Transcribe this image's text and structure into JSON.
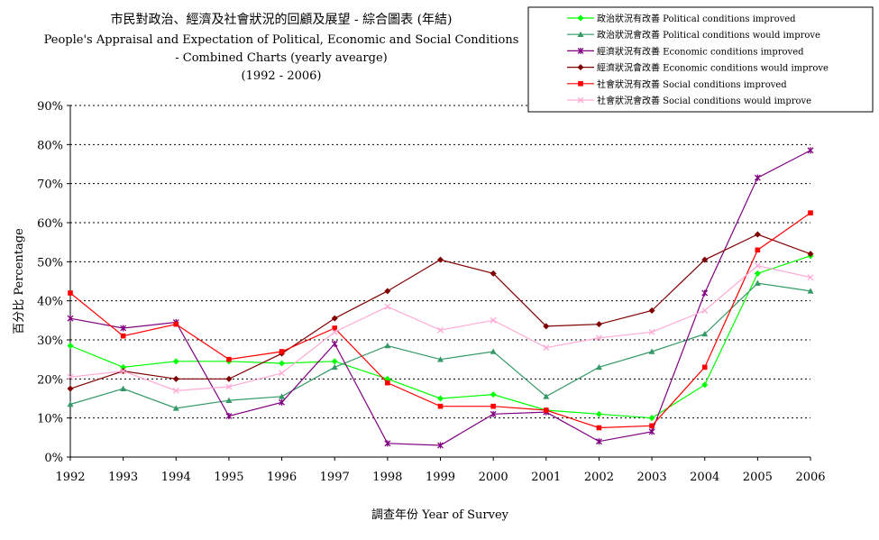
{
  "chart_data": {
    "type": "line",
    "title_lines": [
      "市民對政治、經濟及社會狀況的回顧及展望 - 綜合圖表 (年結)",
      "People's Appraisal and Expectation of Political, Economic and Social Conditions",
      "- Combined Charts  (yearly avearge)",
      "(1992 - 2006)"
    ],
    "xlabel": "調查年份 Year of Survey",
    "ylabel": "百分比 Percentage",
    "x": [
      "1992",
      "1993",
      "1994",
      "1995",
      "1996",
      "1997",
      "1998",
      "1999",
      "2000",
      "2001",
      "2002",
      "2003",
      "2004",
      "2005",
      "2006"
    ],
    "y_ticks": [
      "0%",
      "10%",
      "20%",
      "30%",
      "40%",
      "50%",
      "60%",
      "70%",
      "80%",
      "90%"
    ],
    "ylim": [
      0,
      90
    ],
    "grid": "horizontal dotted",
    "legend_position": "top-right",
    "series": [
      {
        "name": "政治狀況有改善 Political conditions improved",
        "color": "#00ff00",
        "marker": "diamond",
        "values": [
          28.5,
          23.0,
          24.5,
          24.5,
          24.0,
          24.5,
          20.0,
          15.0,
          16.0,
          12.0,
          11.0,
          10.0,
          18.5,
          47.0,
          51.5
        ]
      },
      {
        "name": "政治狀況會改善 Political conditions would improve",
        "color": "#339966",
        "marker": "triangle",
        "values": [
          13.5,
          17.5,
          12.5,
          14.5,
          15.5,
          23.0,
          28.5,
          25.0,
          27.0,
          15.5,
          23.0,
          27.0,
          31.5,
          44.5,
          42.5
        ]
      },
      {
        "name": "經濟狀況有改善 Economic conditions improved",
        "color": "#800080",
        "marker": "star",
        "values": [
          35.5,
          33.0,
          34.5,
          10.5,
          14.0,
          29.0,
          3.5,
          3.0,
          11.0,
          11.5,
          4.0,
          6.5,
          42.0,
          71.5,
          78.5
        ]
      },
      {
        "name": "經濟狀況會改善 Economic conditions would improve",
        "color": "#800000",
        "marker": "diamond",
        "values": [
          17.5,
          22.0,
          20.0,
          20.0,
          26.5,
          35.5,
          42.5,
          50.5,
          47.0,
          33.5,
          34.0,
          37.5,
          50.5,
          57.0,
          52.0
        ]
      },
      {
        "name": "社會狀況有改善 Social conditions improved",
        "color": "#ff0000",
        "marker": "square",
        "values": [
          42.0,
          31.0,
          34.0,
          25.0,
          27.0,
          33.0,
          19.0,
          13.0,
          13.0,
          12.0,
          7.5,
          8.0,
          23.0,
          53.0,
          62.5
        ]
      },
      {
        "name": "社會狀況會改善 Social conditions would improve",
        "color": "#ffaad4",
        "marker": "x",
        "values": [
          20.5,
          22.0,
          17.0,
          18.0,
          21.5,
          32.0,
          38.5,
          32.5,
          35.0,
          28.0,
          30.5,
          32.0,
          37.5,
          49.0,
          46.0
        ]
      }
    ]
  }
}
